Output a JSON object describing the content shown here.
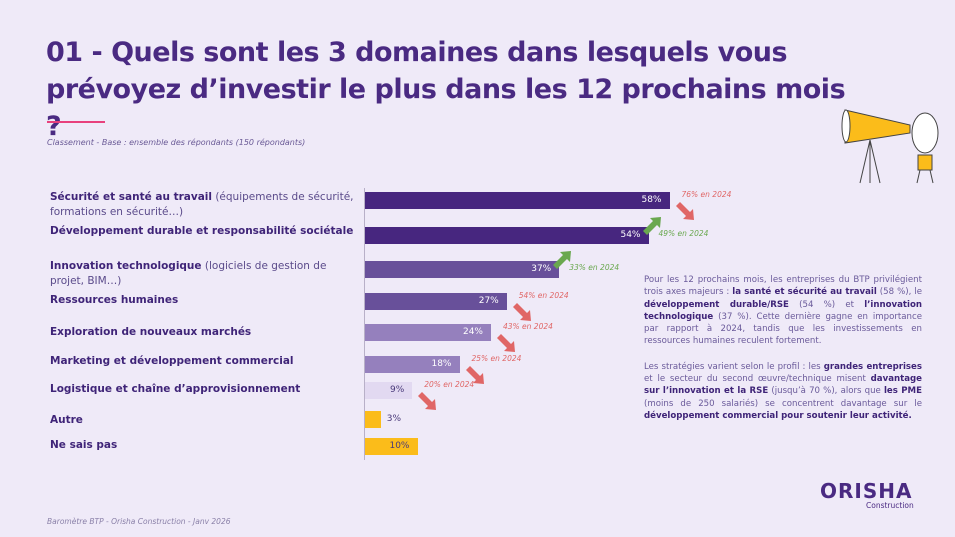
{
  "title": "01 - Quels sont les 3 domaines dans lesquels vous prévoyez d’investir le plus dans les 12 prochains mois ?",
  "subtitle": "Classement - Base : ensemble des répondants (150 répondants)",
  "chart_data": {
    "type": "bar",
    "orientation": "horizontal",
    "categories": [
      {
        "bold": "Sécurité et santé au travail",
        "detail": " (équipements de sécurité, formations en sécurité…)"
      },
      {
        "bold": "Développement durable et responsabilité sociétale",
        "detail": ""
      },
      {
        "bold": "Innovation technologique",
        "detail": " (logiciels de gestion de projet, BIM…)"
      },
      {
        "bold": "Ressources humaines",
        "detail": ""
      },
      {
        "bold": "Exploration de nouveaux marchés",
        "detail": ""
      },
      {
        "bold": "Marketing et développement commercial",
        "detail": ""
      },
      {
        "bold": "Logistique et chaîne d’approvisionnement",
        "detail": ""
      },
      {
        "bold": "Autre",
        "detail": ""
      },
      {
        "bold": "Ne sais pas",
        "detail": ""
      }
    ],
    "values": [
      58,
      54,
      37,
      27,
      24,
      18,
      9,
      3,
      10
    ],
    "value_labels": [
      "58%",
      "54%",
      "37%",
      "27%",
      "24%",
      "18%",
      "9%",
      "3%",
      "10%"
    ],
    "colors": [
      "#47267f",
      "#47267f",
      "#68509a",
      "#68509a",
      "#9580bd",
      "#9580bd",
      "#e2d9f1",
      "#fbbc1a",
      "#fbbc1a"
    ],
    "comparison_2024": [
      {
        "text": "76% en 2024",
        "trend": "down"
      },
      {
        "text": "49% en 2024",
        "trend": "up"
      },
      {
        "text": "33% en 2024",
        "trend": "up"
      },
      {
        "text": "54% en 2024",
        "trend": "down"
      },
      {
        "text": "43% en 2024",
        "trend": "down"
      },
      {
        "text": "25% en 2024",
        "trend": "down"
      },
      {
        "text": "20% en 2024",
        "trend": "down"
      },
      null,
      null
    ],
    "trend_colors": {
      "up": "#6aa84f",
      "down": "#e06666"
    }
  },
  "body": {
    "p1": [
      {
        "t": "Pour les 12 prochains mois, les entreprises du BTP privilégient trois axes majeurs : "
      },
      {
        "b": "la santé et sécurité au travail"
      },
      {
        "t": " (58 %), le "
      },
      {
        "b": "développement durable/RSE"
      },
      {
        "t": " (54 %) et "
      },
      {
        "b": "l’innovation technologique"
      },
      {
        "t": " (37 %). Cette dernière gagne en importance par rapport à 2024, tandis que les investissements en ressources humaines reculent fortement."
      }
    ],
    "p2": [
      {
        "t": "Les stratégies varient selon le profil : les "
      },
      {
        "b": "grandes entreprises"
      },
      {
        "t": " et le secteur du second œuvre/technique misent "
      },
      {
        "b": "davantage sur l’innovation et la RSE"
      },
      {
        "t": " (jusqu’à 70 %), alors que "
      },
      {
        "b": "les PME"
      },
      {
        "t": " (moins de 250 salariés) se concentrent davantage sur le "
      },
      {
        "b": "développement commercial pour soutenir leur activité."
      }
    ]
  },
  "footer": "Baromètre BTP - Orisha Construction - Janv 2026",
  "logo": {
    "name": "ORISHA",
    "sub": "Construction"
  }
}
